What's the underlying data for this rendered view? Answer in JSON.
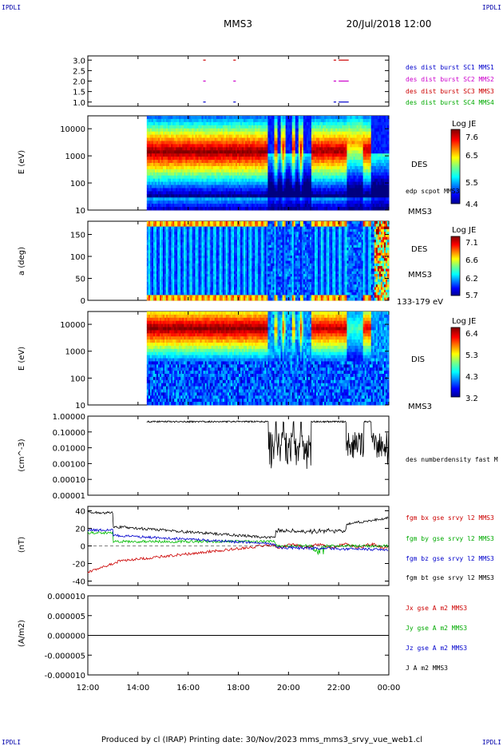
{
  "corner_label": "IPDLI",
  "title": "MMS3",
  "date": "20/Jul/2018 12:00",
  "footer": "Produced by cl (IRAP)   Printing date: 30/Nov/2023   mms_mms3_srvy_vue_web1.cl",
  "chart_data": [
    {
      "type": "scatter",
      "id": "burst",
      "ylim": [
        0.8,
        3.2
      ],
      "yticks": [
        "3.0",
        "2.5",
        "2.0",
        "1.5",
        "1.0"
      ],
      "ytick_values": [
        3.0,
        2.5,
        2.0,
        1.5,
        1.0
      ],
      "series": [
        {
          "name": "des dist burst SC1 MMS1",
          "color": "#0000cc",
          "y": 1.0,
          "segments": [
            [
              16.6,
              16.7
            ],
            [
              17.8,
              17.9
            ],
            [
              21.8,
              21.9
            ],
            [
              22.0,
              22.4
            ]
          ]
        },
        {
          "name": "des dist burst SC2 MMS2",
          "color": "#cc00cc",
          "y": 2.0,
          "segments": [
            [
              16.6,
              16.7
            ],
            [
              17.8,
              17.9
            ],
            [
              21.8,
              21.9
            ],
            [
              22.0,
              22.4
            ]
          ]
        },
        {
          "name": "des dist burst SC3 MMS3",
          "color": "#cc0000",
          "y": 3.0,
          "segments": [
            [
              16.6,
              16.7
            ],
            [
              17.8,
              17.9
            ],
            [
              21.8,
              21.9
            ],
            [
              22.0,
              22.4
            ]
          ]
        },
        {
          "name": "des dist burst SC4 MMS4",
          "color": "#00aa00",
          "y": 0.0,
          "segments": []
        }
      ]
    },
    {
      "type": "heatmap",
      "id": "des_energy",
      "ylabel": "E (eV)",
      "yscale": "log",
      "ylim": [
        10,
        30000
      ],
      "yticks": [
        "10000",
        "1000",
        "100",
        "10"
      ],
      "ytick_values": [
        10000,
        1000,
        100,
        10
      ],
      "instrument": "DES",
      "spacecraft": "MMS3",
      "overlay": "edp scpot MMS3",
      "colorbar": {
        "title": "Log JE",
        "ticks": [
          "7.6",
          "6.5",
          "5.5",
          "4.4"
        ],
        "min": 4.4,
        "max": 7.6
      }
    },
    {
      "type": "heatmap",
      "id": "des_pitch",
      "ylabel": "a (deg)",
      "ylim": [
        0,
        180
      ],
      "yticks": [
        "150",
        "100",
        "50",
        "0"
      ],
      "ytick_values": [
        150,
        100,
        50,
        0
      ],
      "instrument": "DES",
      "spacecraft": "MMS3",
      "energy_range": "133-179 eV",
      "colorbar": {
        "title": "Log JE",
        "ticks": [
          "7.1",
          "6.6",
          "6.2",
          "5.7"
        ],
        "min": 5.7,
        "max": 7.1
      }
    },
    {
      "type": "heatmap",
      "id": "dis_energy",
      "ylabel": "E (eV)",
      "yscale": "log",
      "ylim": [
        10,
        30000
      ],
      "yticks": [
        "10000",
        "1000",
        "100",
        "10"
      ],
      "ytick_values": [
        10000,
        1000,
        100,
        10
      ],
      "instrument": "DIS",
      "spacecraft": "MMS3",
      "colorbar": {
        "title": "Log JE",
        "ticks": [
          "6.4",
          "5.3",
          "4.3",
          "3.2"
        ],
        "min": 3.2,
        "max": 6.4
      }
    },
    {
      "type": "line",
      "id": "density",
      "ylabel": "(cm^-3)",
      "yscale": "log",
      "ylim": [
        1e-05,
        1.0
      ],
      "yticks": [
        "1.00000",
        "0.10000",
        "0.01000",
        "0.00100",
        "0.00010",
        "0.00001"
      ],
      "ytick_values": [
        1.0,
        0.1,
        0.01,
        0.001,
        0.0001,
        1e-05
      ],
      "series": [
        {
          "name": "des numberdensity fast M",
          "color": "#000000"
        }
      ]
    },
    {
      "type": "line",
      "id": "fgm",
      "ylabel": "(nT)",
      "ylim": [
        -45,
        45
      ],
      "yticks": [
        "40",
        "20",
        "0",
        "-20",
        "-40"
      ],
      "ytick_values": [
        40,
        20,
        0,
        -20,
        -40
      ],
      "series": [
        {
          "name": "fgm bx gse srvy l2 MMS3",
          "color": "#cc0000"
        },
        {
          "name": "fgm by gse srvy l2 MMS3",
          "color": "#00bb00"
        },
        {
          "name": "fgm bz gse srvy l2 MMS3",
          "color": "#0000cc"
        },
        {
          "name": "fgm bt gse srvy l2 MMS3",
          "color": "#000000"
        }
      ]
    },
    {
      "type": "line",
      "id": "current",
      "ylabel": "(A/m2)",
      "ylim": [
        -1e-05,
        1e-05
      ],
      "yticks": [
        "0.000010",
        "0.000005",
        "0.000000",
        "-0.000005",
        "-0.000010"
      ],
      "ytick_values": [
        1e-05,
        5e-06,
        0,
        -5e-06,
        -1e-05
      ],
      "series": [
        {
          "name": "Jx gse A m2 MMS3",
          "color": "#cc0000"
        },
        {
          "name": "Jy gse A m2 MMS3",
          "color": "#00bb00"
        },
        {
          "name": "Jz gse A m2 MMS3",
          "color": "#0000cc"
        },
        {
          "name": "J A m2 MMS3",
          "color": "#000000"
        }
      ]
    }
  ],
  "time_axis": {
    "range": [
      "12:00",
      "00:00"
    ],
    "ticks": [
      "12:00",
      "14:00",
      "16:00",
      "18:00",
      "20:00",
      "22:00",
      "00:00"
    ],
    "tick_hours": [
      12,
      14,
      16,
      18,
      20,
      22,
      24
    ]
  }
}
